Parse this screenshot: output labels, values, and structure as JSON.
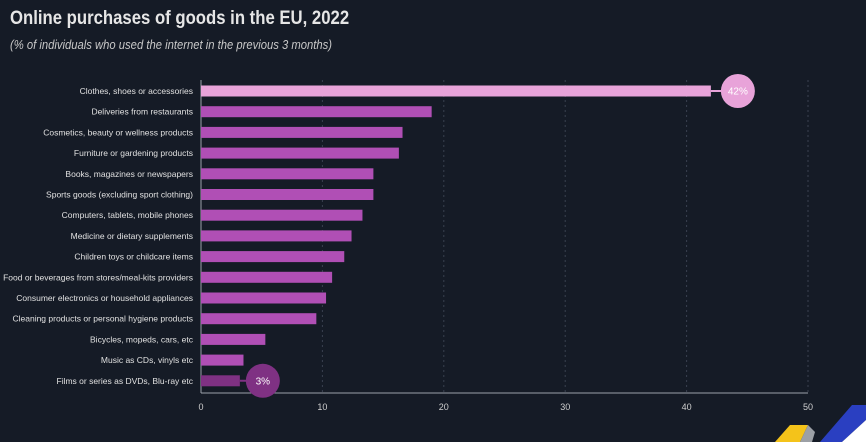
{
  "chart_data": {
    "type": "bar",
    "orientation": "horizontal",
    "title": "Online purchases of goods in the EU, 2022",
    "subtitle": "(% of individuals who used the internet in the previous 3 months)",
    "categories": [
      "Clothes, shoes or accessories",
      "Deliveries from restaurants",
      "Cosmetics, beauty or wellness products",
      "Furniture or gardening products",
      "Books, magazines or newspapers",
      "Sports goods (excluding sport clothing)",
      "Computers, tablets, mobile phones",
      "Medicine or dietary supplements",
      "Children toys or childcare items",
      "Food or beverages from stores/meal-kits providers",
      "Consumer electronics or household appliances",
      "Cleaning products or personal hygiene products",
      "Bicycles, mopeds, cars, etc",
      "Music as CDs, vinyls etc",
      "Films or series as DVDs, Blu-ray etc"
    ],
    "values": [
      42,
      19,
      16.6,
      16.3,
      14.2,
      14.2,
      13.3,
      12.4,
      11.8,
      10.8,
      10.3,
      9.5,
      5.3,
      3.5,
      3.2
    ],
    "data_labels": [
      {
        "index": 0,
        "text": "42%"
      },
      {
        "index": 14,
        "text": "3%"
      }
    ],
    "xlim": [
      0,
      50
    ],
    "xticks": [
      0,
      10,
      20,
      30,
      40,
      50
    ],
    "grid": "vertical dotted",
    "colors": {
      "highest": "#e8a3d9",
      "default": "#b04fb5",
      "lowest": "#7f3183",
      "background": "#151b26"
    }
  }
}
